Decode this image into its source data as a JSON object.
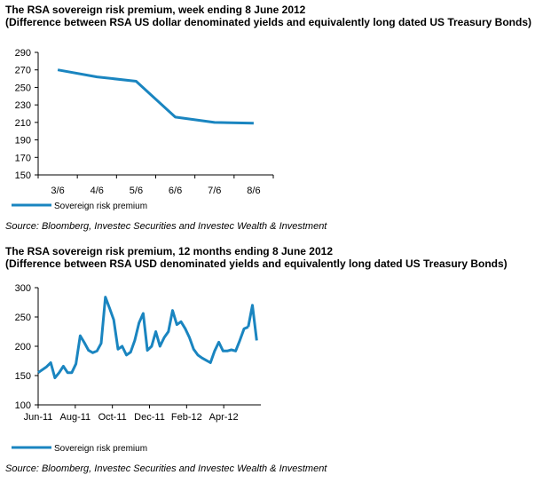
{
  "chart_data": [
    {
      "type": "line",
      "title": "The RSA sovereign risk premium, week ending  8 June  2012",
      "subtitle": "(Difference between RSA US dollar denominated yields  and equivalently  long dated US Treasury Bonds)",
      "categories": [
        "3/6",
        "4/6",
        "5/6",
        "6/6",
        "7/6",
        "8/6"
      ],
      "series": [
        {
          "name": "Sovereign risk premium",
          "values": [
            270,
            262,
            257,
            216,
            210,
            209
          ]
        }
      ],
      "ylim": [
        150,
        290
      ],
      "yticks": [
        150,
        170,
        190,
        210,
        230,
        250,
        270,
        290
      ],
      "grid": false,
      "legend": "bottom-left",
      "source": "Source: Bloomberg, Investec Securities and Investec Wealth & Investment",
      "color": "#1a85c0"
    },
    {
      "type": "line",
      "title": "The RSA sovereign risk premium, 12 months ending  8 June 2012",
      "subtitle": "(Difference between RSA USD denominated yields  and equivalently  long dated US Treasury Bonds)",
      "xtick_labels": [
        "Jun-11",
        "Aug-11",
        "Oct-11",
        "Dec-11",
        "Feb-12",
        "Apr-12"
      ],
      "x_range": [
        0,
        53
      ],
      "series": [
        {
          "name": "Sovereign risk premium",
          "x": [
            0,
            2,
            3,
            4,
            5,
            6,
            7,
            8,
            9,
            10,
            11,
            12,
            13,
            14,
            15,
            16,
            17,
            18,
            19,
            20,
            21,
            22,
            23,
            24,
            25,
            26,
            27,
            28,
            29,
            30,
            31,
            32,
            33,
            34,
            35,
            36,
            37,
            38,
            39,
            40,
            41,
            42,
            43,
            44,
            45,
            46,
            47,
            48,
            49,
            50
          ],
          "values": [
            155,
            165,
            172,
            146,
            155,
            166,
            155,
            155,
            170,
            218,
            206,
            193,
            189,
            192,
            205,
            284,
            265,
            245,
            195,
            200,
            185,
            190,
            210,
            240,
            256,
            193,
            200,
            225,
            200,
            215,
            225,
            261,
            237,
            242,
            230,
            215,
            195,
            185,
            180,
            176,
            172,
            192,
            207,
            192,
            192,
            194,
            192,
            210,
            230,
            233
          ]
        },
        {
          "name": "",
          "x": [
            50,
            51,
            52
          ],
          "values": [
            233,
            270,
            210
          ]
        }
      ],
      "ylim": [
        100,
        300
      ],
      "yticks": [
        100,
        150,
        200,
        250,
        300
      ],
      "grid": false,
      "legend": "bottom-left",
      "source": "Source: Bloomberg, Investec Securities and Investec Wealth & Investment",
      "color": "#1a85c0"
    }
  ]
}
